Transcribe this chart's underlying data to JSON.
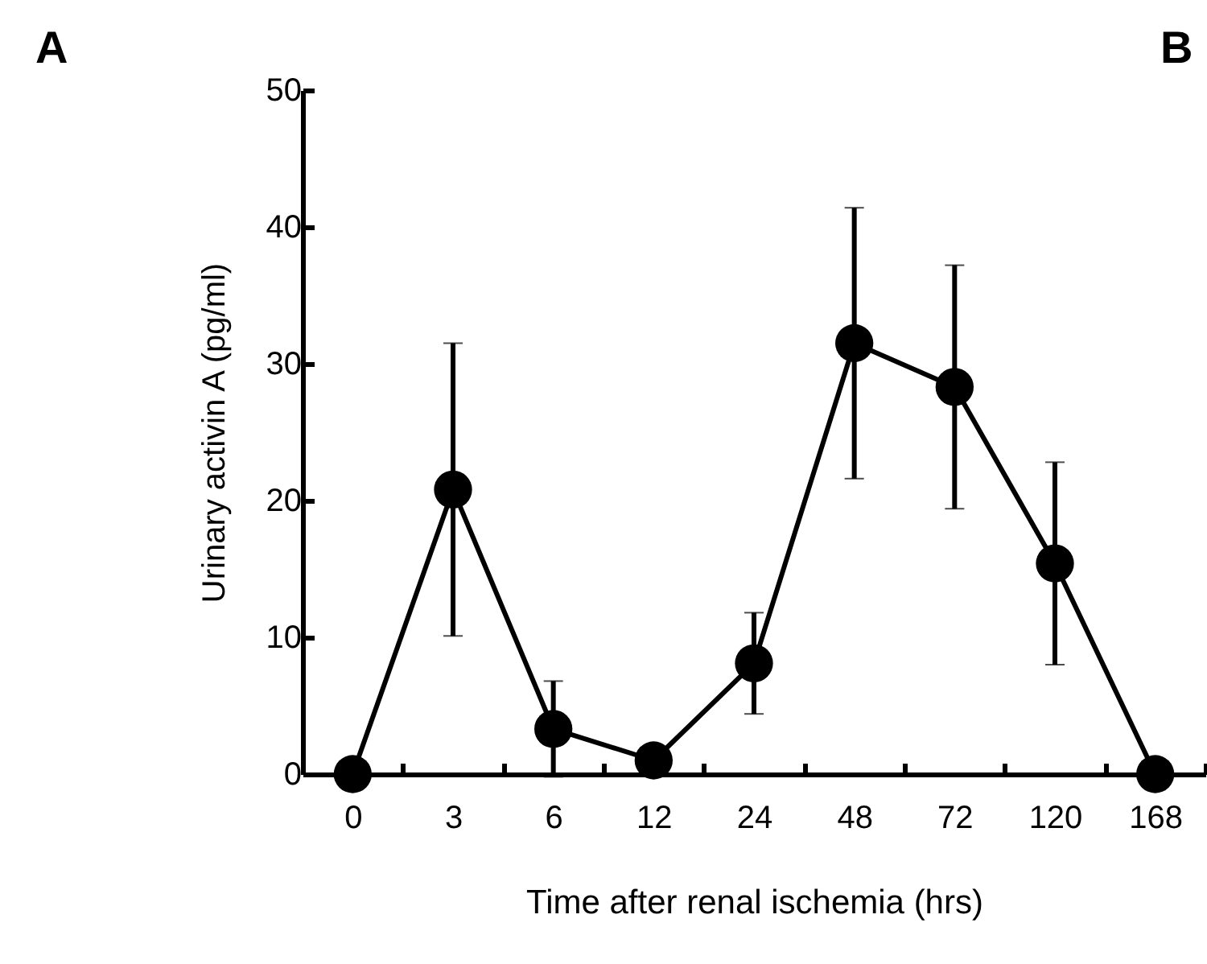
{
  "chart_data": {
    "type": "line",
    "xlabel": "Time after renal ischemia (hrs)",
    "ylabel": "Urinary activin A (pg/ml)",
    "categories": [
      "0",
      "3",
      "6",
      "12",
      "24",
      "48",
      "72",
      "120",
      "168"
    ],
    "values": [
      0,
      20.8,
      3.3,
      1.0,
      8.1,
      31.5,
      28.3,
      15.4,
      0
    ],
    "errors": [
      null,
      10.7,
      3.5,
      null,
      3.7,
      9.9,
      8.9,
      7.4,
      null
    ],
    "color": "#000000",
    "marker": "circle",
    "line_style": "solid",
    "ylim": [
      0,
      50
    ],
    "yticks": [
      0,
      10,
      20,
      30,
      40,
      50
    ],
    "grid": false,
    "annotations": [
      "A",
      "B"
    ]
  }
}
